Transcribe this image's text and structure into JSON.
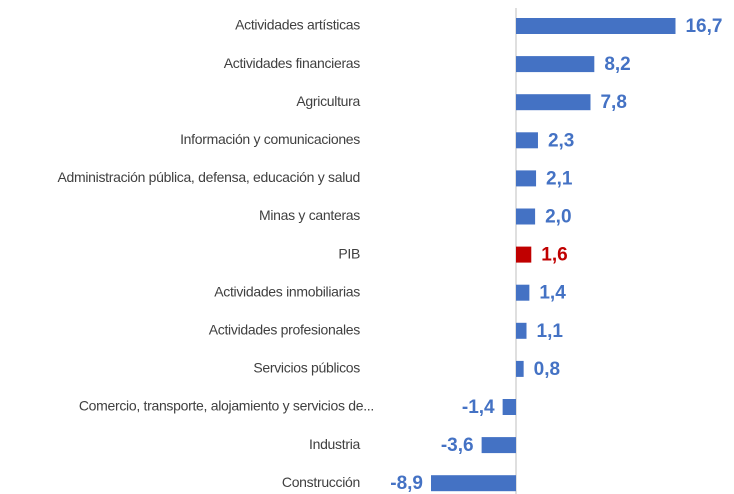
{
  "chart_data": {
    "type": "bar",
    "orientation": "horizontal",
    "categories": [
      "Actividades artísticas",
      "Actividades financieras",
      "Agricultura",
      "Información y comunicaciones",
      "Administración pública, defensa, educación y salud",
      "Minas y canteras",
      "PIB",
      "Actividades inmobiliarias",
      "Actividades profesionales",
      "Servicios públicos",
      "Comercio, transporte, alojamiento y servicios de...",
      "Industria",
      "Construcción"
    ],
    "values": [
      16.7,
      8.2,
      7.8,
      2.3,
      2.1,
      2.0,
      1.6,
      1.4,
      1.1,
      0.8,
      -1.4,
      -3.6,
      -8.9
    ],
    "value_labels": [
      "16,7",
      "8,2",
      "7,8",
      "2,3",
      "2,1",
      "2,0",
      "1,6",
      "1,4",
      "1,1",
      "0,8",
      "-1,4",
      "-3,6",
      "-8,9"
    ],
    "colors": [
      "#4472c4",
      "#4472c4",
      "#4472c4",
      "#4472c4",
      "#4472c4",
      "#4472c4",
      "#c00000",
      "#4472c4",
      "#4472c4",
      "#4472c4",
      "#4472c4",
      "#4472c4",
      "#4472c4"
    ]
  }
}
